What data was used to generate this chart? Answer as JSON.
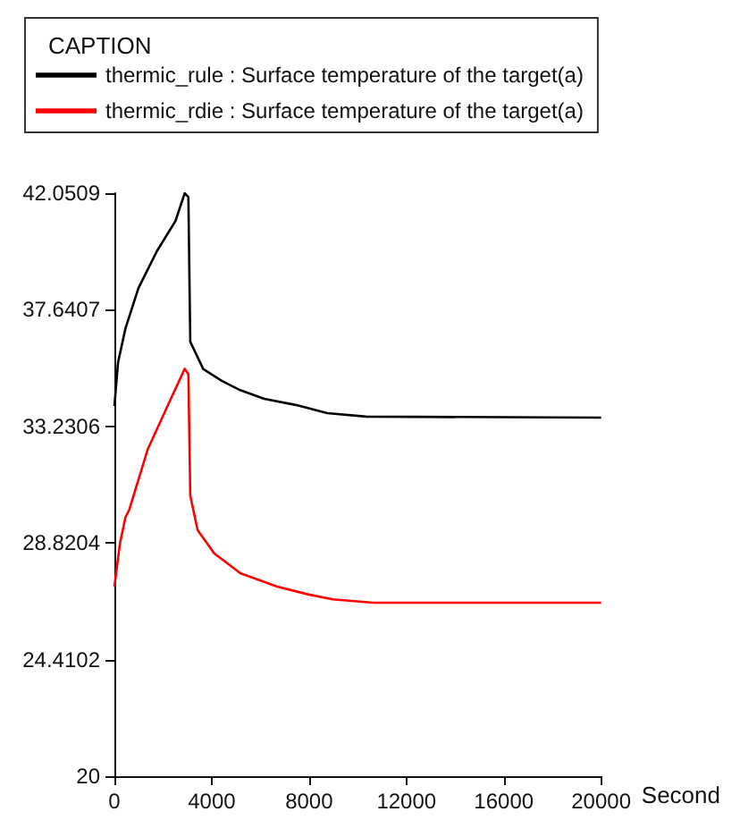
{
  "chart_data": {
    "type": "line",
    "legend_title": "CAPTION",
    "xlabel": "Second",
    "legend": "top",
    "grid": false,
    "marker": "none",
    "line_style": "solid",
    "xlim": [
      0,
      20000
    ],
    "xticks": [
      0,
      4000,
      8000,
      12000,
      16000,
      20000
    ],
    "ylim": [
      20,
      42.0509
    ],
    "yticks": [
      20,
      24.4102,
      28.8204,
      33.2306,
      37.6407,
      42.0509
    ],
    "series": [
      {
        "name": "thermic_rule : Surface temperature of the target(a)",
        "color": "#000000",
        "x": [
          0,
          152,
          456,
          989,
          1749,
          2510,
          2890,
          3040,
          3118,
          3650,
          4411,
          5171,
          6160,
          7453,
          8745,
          10343,
          20000
        ],
        "values": [
          34.0,
          35.66,
          36.94,
          38.46,
          39.86,
          41.0,
          42.05,
          41.9,
          36.43,
          35.4,
          34.95,
          34.6,
          34.27,
          34.04,
          33.73,
          33.6,
          33.56
        ]
      },
      {
        "name": "thermic_rdie : Surface temperature of the target(a)",
        "color": "#ff0000",
        "x": [
          0,
          228,
          456,
          608,
          1369,
          2129,
          2890,
          3040,
          3118,
          3422,
          4107,
          5171,
          6692,
          7985,
          8974,
          10647,
          20000
        ],
        "values": [
          27.17,
          28.8,
          29.8,
          30.07,
          32.36,
          33.89,
          35.41,
          35.2,
          30.6,
          29.3,
          28.42,
          27.68,
          27.17,
          26.87,
          26.69,
          26.56,
          26.56
        ]
      }
    ]
  }
}
